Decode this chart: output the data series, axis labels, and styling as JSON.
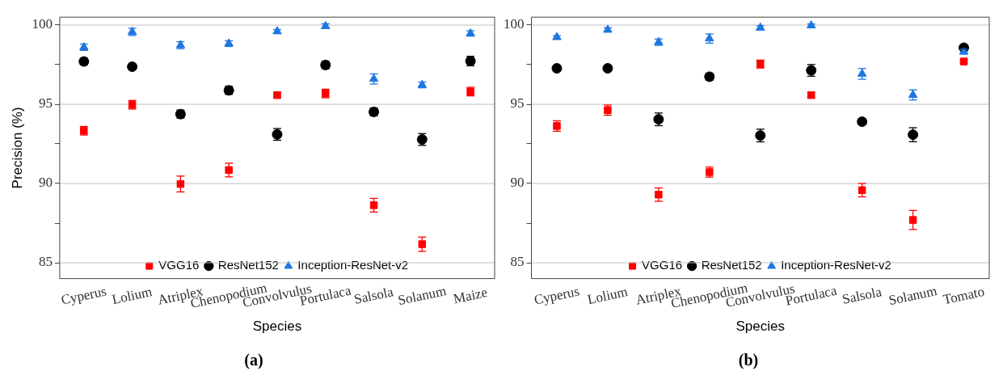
{
  "chart_data": [
    {
      "type": "scatter",
      "xlabel": "Species",
      "ylabel": "Precision (%)",
      "annotations": [
        "(a)"
      ],
      "categories": [
        "Cyperus",
        "Lolium",
        "Atriplex",
        "Chenopodium",
        "Convolvulus",
        "Portulaca",
        "Salsola",
        "Solanum",
        "Maize"
      ],
      "ylim": [
        84,
        100.5
      ],
      "yticks": [
        85,
        {
          "value": 87.5,
          "label": null
        },
        90,
        {
          "value": 92.5,
          "label": null
        },
        95,
        {
          "value": 97.5,
          "label": null
        },
        100
      ],
      "grid": "y",
      "legend": "bottom",
      "series": [
        {
          "name": "VGG16",
          "color": "#ff0000",
          "marker": "square",
          "values": [
            93.33,
            94.97,
            89.97,
            90.85,
            95.58,
            95.68,
            88.63,
            86.17,
            95.8
          ],
          "errors": [
            0.27,
            0.27,
            0.5,
            0.43,
            0.17,
            0.27,
            0.43,
            0.45,
            0.27
          ]
        },
        {
          "name": "ResNet152",
          "color": "#000000",
          "marker": "circle",
          "values": [
            97.7,
            97.37,
            94.38,
            95.88,
            93.1,
            97.48,
            94.52,
            92.78,
            97.73
          ],
          "errors": [
            0.2,
            0.15,
            0.25,
            0.25,
            0.37,
            0.23,
            0.25,
            0.37,
            0.3
          ]
        },
        {
          "name": "Inception-ResNet-v2",
          "color": "#1f77e0",
          "marker": "triangle",
          "values": [
            98.6,
            99.57,
            98.73,
            98.83,
            99.6,
            99.93,
            96.6,
            96.22,
            99.47
          ],
          "errors": [
            0.2,
            0.23,
            0.22,
            0.18,
            0.12,
            0.15,
            0.32,
            0.18,
            0.17
          ]
        }
      ]
    },
    {
      "type": "scatter",
      "xlabel": "Species",
      "annotations": [
        "(b)"
      ],
      "categories": [
        "Cyperus",
        "Lolium",
        "Atriplex",
        "Chenopodium",
        "Convolvulus",
        "Portulaca",
        "Salsola",
        "Solanum",
        "Tomato"
      ],
      "ylim": [
        84,
        100.5
      ],
      "yticks": [
        85,
        {
          "value": 87.5,
          "label": null
        },
        90,
        {
          "value": 92.5,
          "label": null
        },
        95,
        {
          "value": 97.5,
          "label": null
        },
        100
      ],
      "grid": "y",
      "legend": "bottom",
      "series": [
        {
          "name": "VGG16",
          "color": "#ff0000",
          "marker": "square",
          "values": [
            93.63,
            94.63,
            89.3,
            90.72,
            97.54,
            95.58,
            89.58,
            87.7,
            97.7
          ],
          "errors": [
            0.33,
            0.32,
            0.42,
            0.32,
            0.25,
            0.17,
            0.42,
            0.6,
            0.1
          ]
        },
        {
          "name": "ResNet152",
          "color": "#000000",
          "marker": "circle",
          "values": [
            97.27,
            97.27,
            94.05,
            96.74,
            93.03,
            97.14,
            93.9,
            93.08,
            98.57
          ],
          "errors": [
            0.15,
            0.15,
            0.4,
            0.22,
            0.4,
            0.37,
            0.17,
            0.44,
            0.1
          ]
        },
        {
          "name": "Inception-ResNet-v2",
          "color": "#1f77e0",
          "marker": "triangle",
          "values": [
            99.23,
            99.7,
            98.92,
            99.15,
            99.83,
            99.97,
            96.92,
            95.59,
            98.32
          ],
          "errors": [
            0.1,
            0.13,
            0.2,
            0.29,
            0.13,
            0.1,
            0.34,
            0.32,
            0.15
          ]
        }
      ]
    }
  ]
}
